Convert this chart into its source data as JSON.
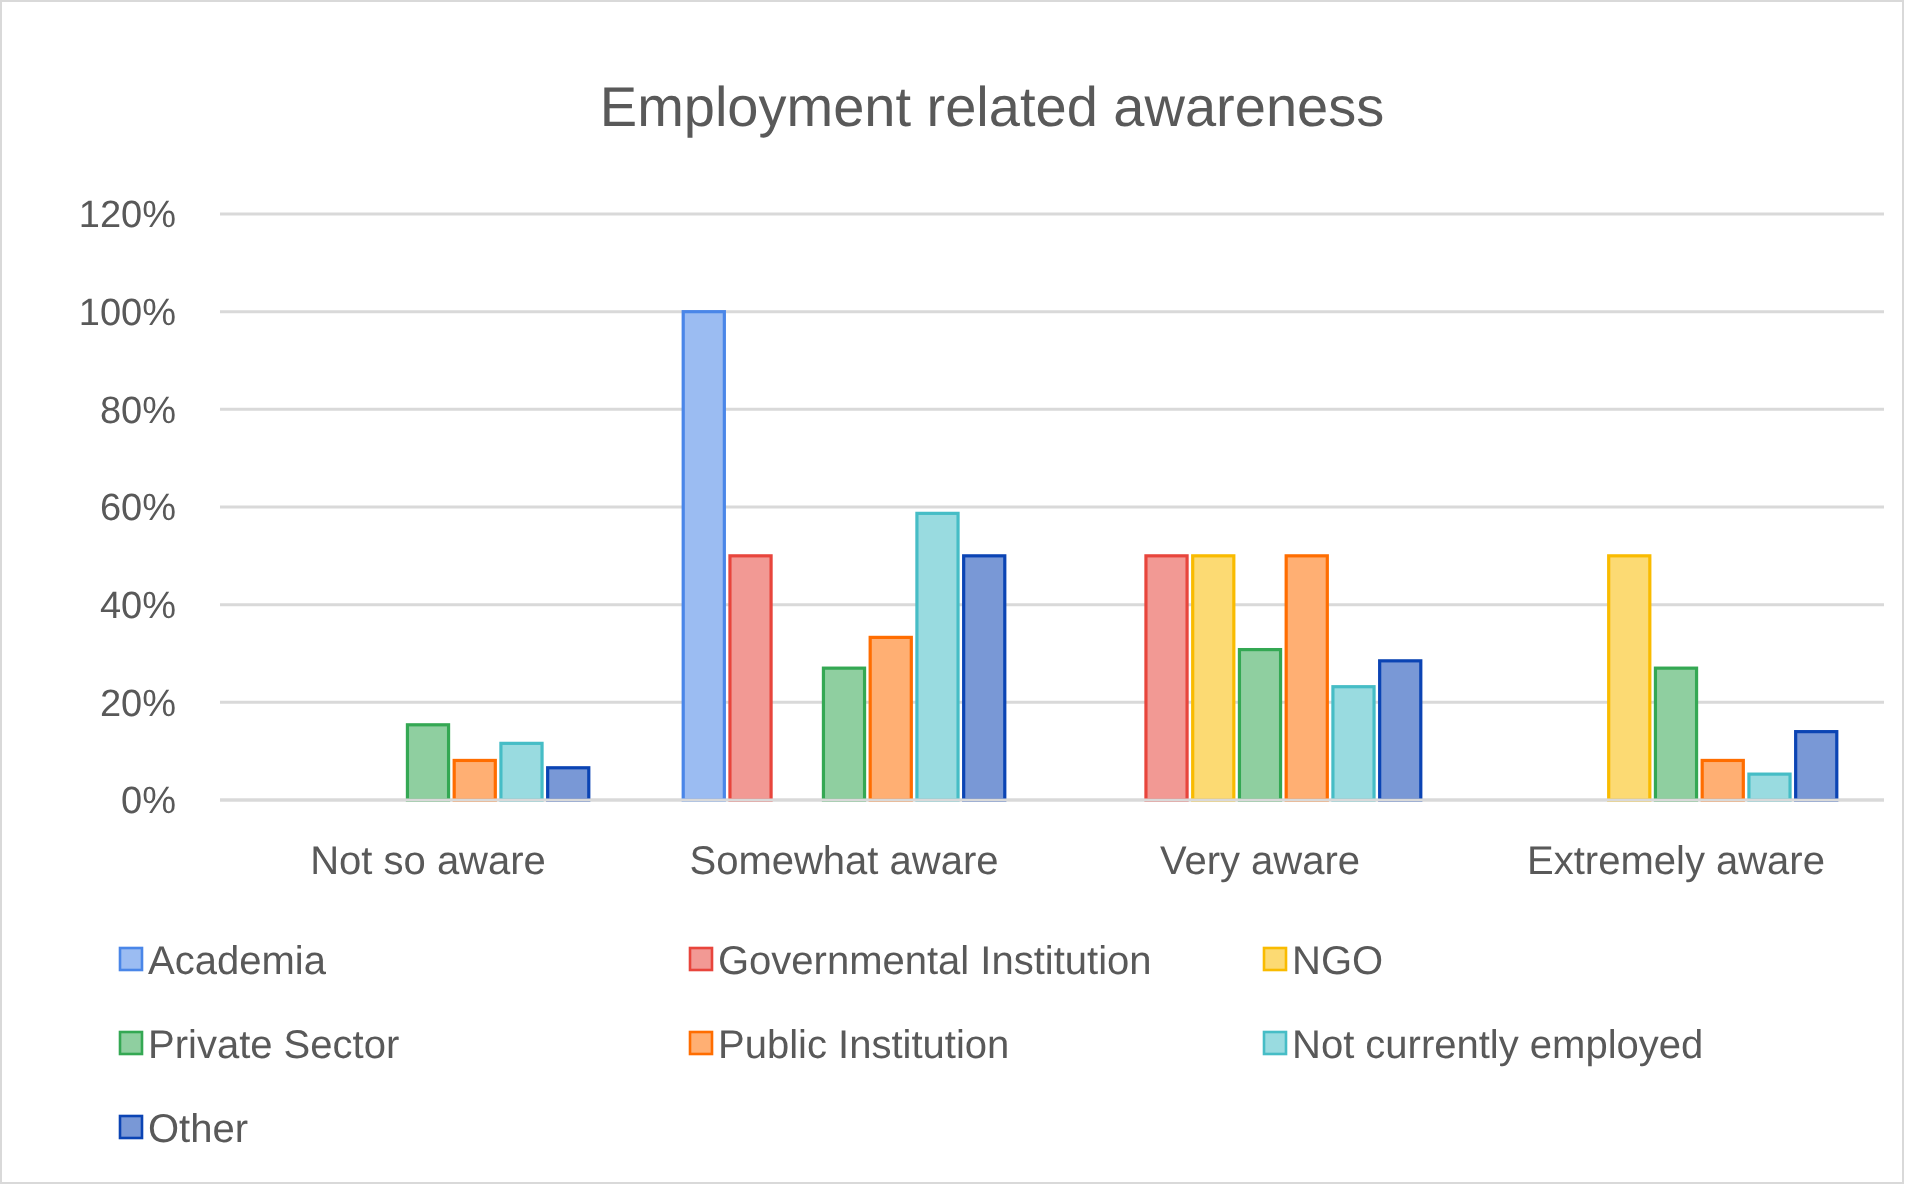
{
  "chart_data": {
    "type": "bar",
    "title": "Employment related awareness",
    "categories": [
      "Not so aware",
      "Somewhat aware",
      "Very aware",
      "Extremely aware"
    ],
    "series": [
      {
        "name": "Academia",
        "color": "#4a86e8",
        "values": [
          0,
          100,
          0,
          0
        ]
      },
      {
        "name": "Governmental Institution",
        "color": "#e8453c",
        "values": [
          0,
          50,
          50,
          0
        ]
      },
      {
        "name": "NGO",
        "color": "#f9bb00",
        "values": [
          0,
          0,
          50,
          50
        ]
      },
      {
        "name": "Private Sector",
        "color": "#34a853",
        "values": [
          15.4,
          27,
          30.8,
          27
        ]
      },
      {
        "name": "Public Institution",
        "color": "#ff6d00",
        "values": [
          8.1,
          33.3,
          50,
          8.1
        ]
      },
      {
        "name": "Not currently employed",
        "color": "#46bdc6",
        "values": [
          11.6,
          58.7,
          23.2,
          5.3
        ]
      },
      {
        "name": "Other",
        "color": "#0b44b4",
        "values": [
          6.6,
          50,
          28.5,
          14
        ]
      }
    ],
    "ylim": [
      0,
      120
    ],
    "yticks": [
      {
        "value": 0,
        "label": "0%"
      },
      {
        "value": 20,
        "label": "20%"
      },
      {
        "value": 40,
        "label": "40%"
      },
      {
        "value": 60,
        "label": "60%"
      },
      {
        "value": 80,
        "label": "80%"
      },
      {
        "value": 100,
        "label": "100%"
      },
      {
        "value": 120,
        "label": "120%"
      }
    ],
    "grid": "y",
    "legend": "bottom"
  }
}
